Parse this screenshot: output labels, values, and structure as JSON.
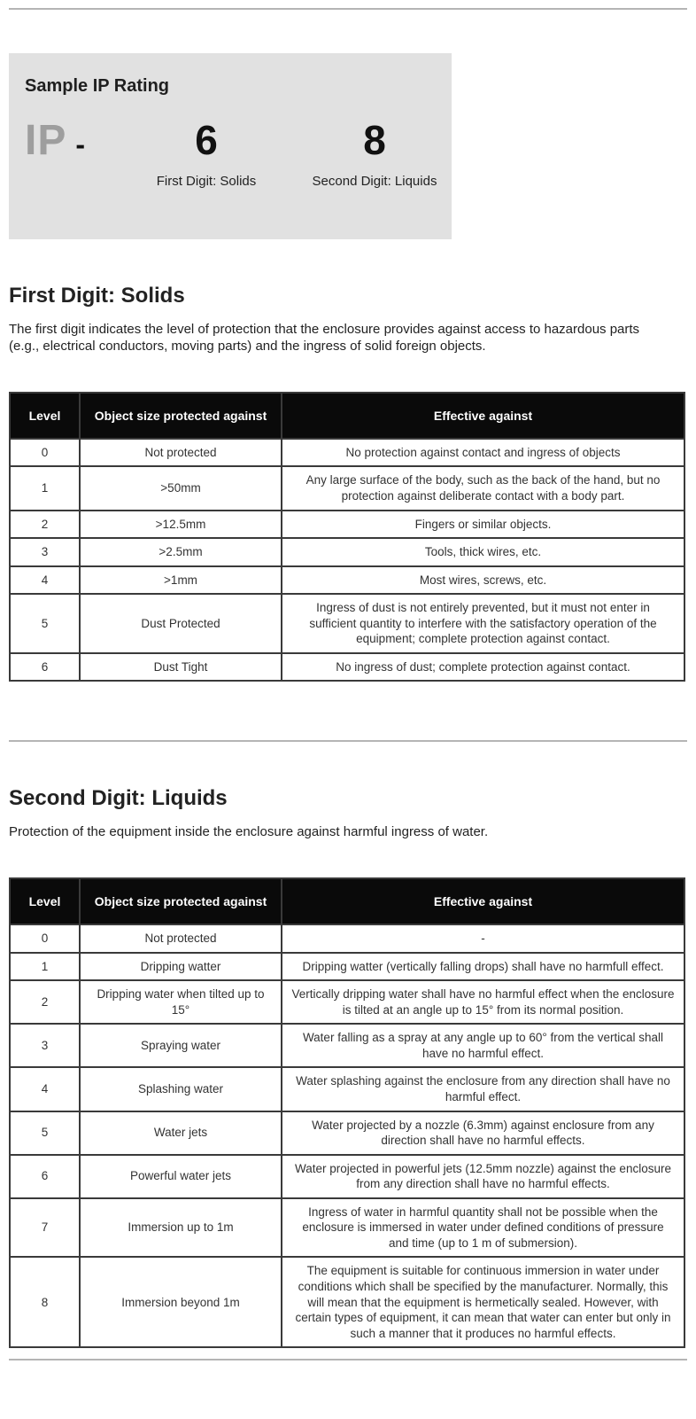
{
  "colors": {
    "page_bg": "#ffffff",
    "sample_box_bg": "#e1e1e1",
    "ip_prefix_gray": "#9e9e9e",
    "table_header_bg": "#0a0a0a",
    "table_header_text": "#ffffff",
    "table_border": "#3a3a3a",
    "divider": "#b5b5b5",
    "body_text": "#222222"
  },
  "sample_box": {
    "title": "Sample IP Rating",
    "prefix": "IP",
    "dash": "-",
    "first_digit": "6",
    "second_digit": "8",
    "first_label": "First Digit: Solids",
    "second_label": "Second Digit: Liquids"
  },
  "solids_section": {
    "heading": "First Digit: Solids",
    "intro": "The first digit indicates the level of protection that the enclosure provides against access to hazardous parts (e.g., electrical conductors, moving parts) and the ingress of solid foreign objects.",
    "table": {
      "headers": [
        "Level",
        "Object size protected against",
        "Effective against"
      ],
      "rows": [
        [
          "0",
          "Not protected",
          "No protection against contact and ingress of objects"
        ],
        [
          "1",
          ">50mm",
          "Any large surface of the body, such as the back of the hand, but no protection against deliberate contact with a body part."
        ],
        [
          "2",
          ">12.5mm",
          "Fingers or similar objects."
        ],
        [
          "3",
          ">2.5mm",
          "Tools, thick wires, etc."
        ],
        [
          "4",
          ">1mm",
          "Most wires, screws, etc."
        ],
        [
          "5",
          "Dust Protected",
          "Ingress of dust is not entirely prevented, but it must not enter in sufficient quantity to interfere with the satisfactory operation of the equipment; complete protection against contact."
        ],
        [
          "6",
          "Dust Tight",
          "No ingress of dust; complete protection against contact."
        ]
      ]
    }
  },
  "liquids_section": {
    "heading": "Second Digit: Liquids",
    "intro": "Protection of the equipment inside the enclosure against harmful ingress of water.",
    "table": {
      "headers": [
        "Level",
        "Object size protected against",
        "Effective against"
      ],
      "rows": [
        [
          "0",
          "Not protected",
          "-"
        ],
        [
          "1",
          "Dripping watter",
          "Dripping watter (vertically falling drops) shall have no harmfull effect."
        ],
        [
          "2",
          "Dripping water when tilted up to 15°",
          "Vertically dripping water shall have no harmful effect when the enclosure is tilted at an angle up to 15° from its normal position."
        ],
        [
          "3",
          "Spraying water",
          "Water falling as a spray at any angle up to 60° from the vertical shall have no harmful effect."
        ],
        [
          "4",
          "Splashing water",
          "Water splashing against the enclosure from any direction shall have no harmful effect."
        ],
        [
          "5",
          "Water jets",
          "Water projected by a nozzle (6.3mm) against enclosure from any direction shall have no harmful effects."
        ],
        [
          "6",
          "Powerful water jets",
          "Water projected in powerful jets (12.5mm nozzle) against the enclosure from any direction shall have no harmful effects."
        ],
        [
          "7",
          "Immersion up to 1m",
          "Ingress of water in harmful quantity shall not be possible when the enclosure is immersed in water under defined conditions of pressure and time (up to 1 m of submersion)."
        ],
        [
          "8",
          "Immersion beyond 1m",
          "The equipment is suitable for continuous immersion in water under conditions which shall be specified by the manufacturer. Normally, this will mean that the equipment is hermetically sealed. However, with certain types of equipment, it can mean that water can enter but only in such a manner that it produces no harmful effects."
        ]
      ]
    }
  }
}
